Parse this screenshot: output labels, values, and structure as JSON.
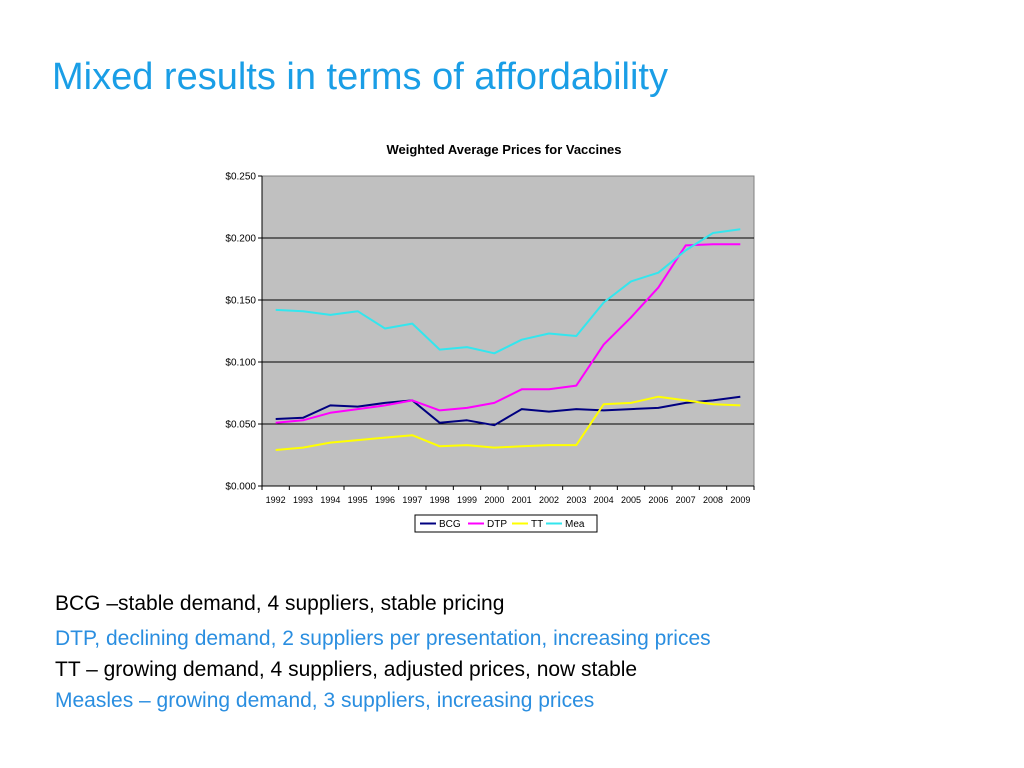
{
  "slide": {
    "title": "Mixed results in terms of affordability",
    "bullets": [
      {
        "text": "BCG –stable demand, 4 suppliers,  stable pricing",
        "color": "#000000"
      },
      {
        "text": "DTP, declining demand, 2 suppliers per presentation, increasing prices",
        "color": "#2a8ee0"
      },
      {
        "text": "TT – growing demand, 4 suppliers, adjusted prices, now stable",
        "color": "#000000"
      },
      {
        "text": "Measles – growing demand, 3 suppliers, increasing prices",
        "color": "#2a8ee0"
      }
    ]
  },
  "chart_data": {
    "type": "line",
    "title": "Weighted Average Prices for Vaccines",
    "xlabel": "",
    "ylabel": "",
    "x": [
      "1992",
      "1993",
      "1994",
      "1995",
      "1996",
      "1997",
      "1998",
      "1999",
      "2000",
      "2001",
      "2002",
      "2003",
      "2004",
      "2005",
      "2006",
      "2007",
      "2008",
      "2009"
    ],
    "ylim": [
      0,
      0.25
    ],
    "yticks": [
      0.0,
      0.05,
      0.1,
      0.15,
      0.2,
      0.25
    ],
    "ytick_labels": [
      "$0.000",
      "$0.050",
      "$0.100",
      "$0.150",
      "$0.200",
      "$0.250"
    ],
    "grid": "horizontal",
    "plot_background": "#c0c0c0",
    "legend": "bottom",
    "series": [
      {
        "name": "BCG",
        "color": "#000080",
        "values": [
          0.054,
          0.055,
          0.065,
          0.064,
          0.067,
          0.069,
          0.051,
          0.053,
          0.049,
          0.062,
          0.06,
          0.062,
          0.061,
          0.062,
          0.063,
          0.067,
          0.069,
          0.072
        ]
      },
      {
        "name": "DTP",
        "color": "#ff00ff",
        "values": [
          0.051,
          0.053,
          0.059,
          0.062,
          0.065,
          0.069,
          0.061,
          0.063,
          0.067,
          0.078,
          0.078,
          0.081,
          0.114,
          0.136,
          0.16,
          0.194,
          0.195,
          0.195
        ]
      },
      {
        "name": "TT",
        "color": "#ffff00",
        "values": [
          0.029,
          0.031,
          0.035,
          0.037,
          0.039,
          0.041,
          0.032,
          0.033,
          0.031,
          0.032,
          0.033,
          0.033,
          0.066,
          0.067,
          0.072,
          0.069,
          0.066,
          0.065
        ]
      },
      {
        "name": "Mea",
        "color": "#33e6ee",
        "values": [
          0.142,
          0.141,
          0.138,
          0.141,
          0.127,
          0.131,
          0.11,
          0.112,
          0.107,
          0.118,
          0.123,
          0.121,
          0.148,
          0.165,
          0.172,
          0.19,
          0.204,
          0.207
        ]
      }
    ]
  }
}
